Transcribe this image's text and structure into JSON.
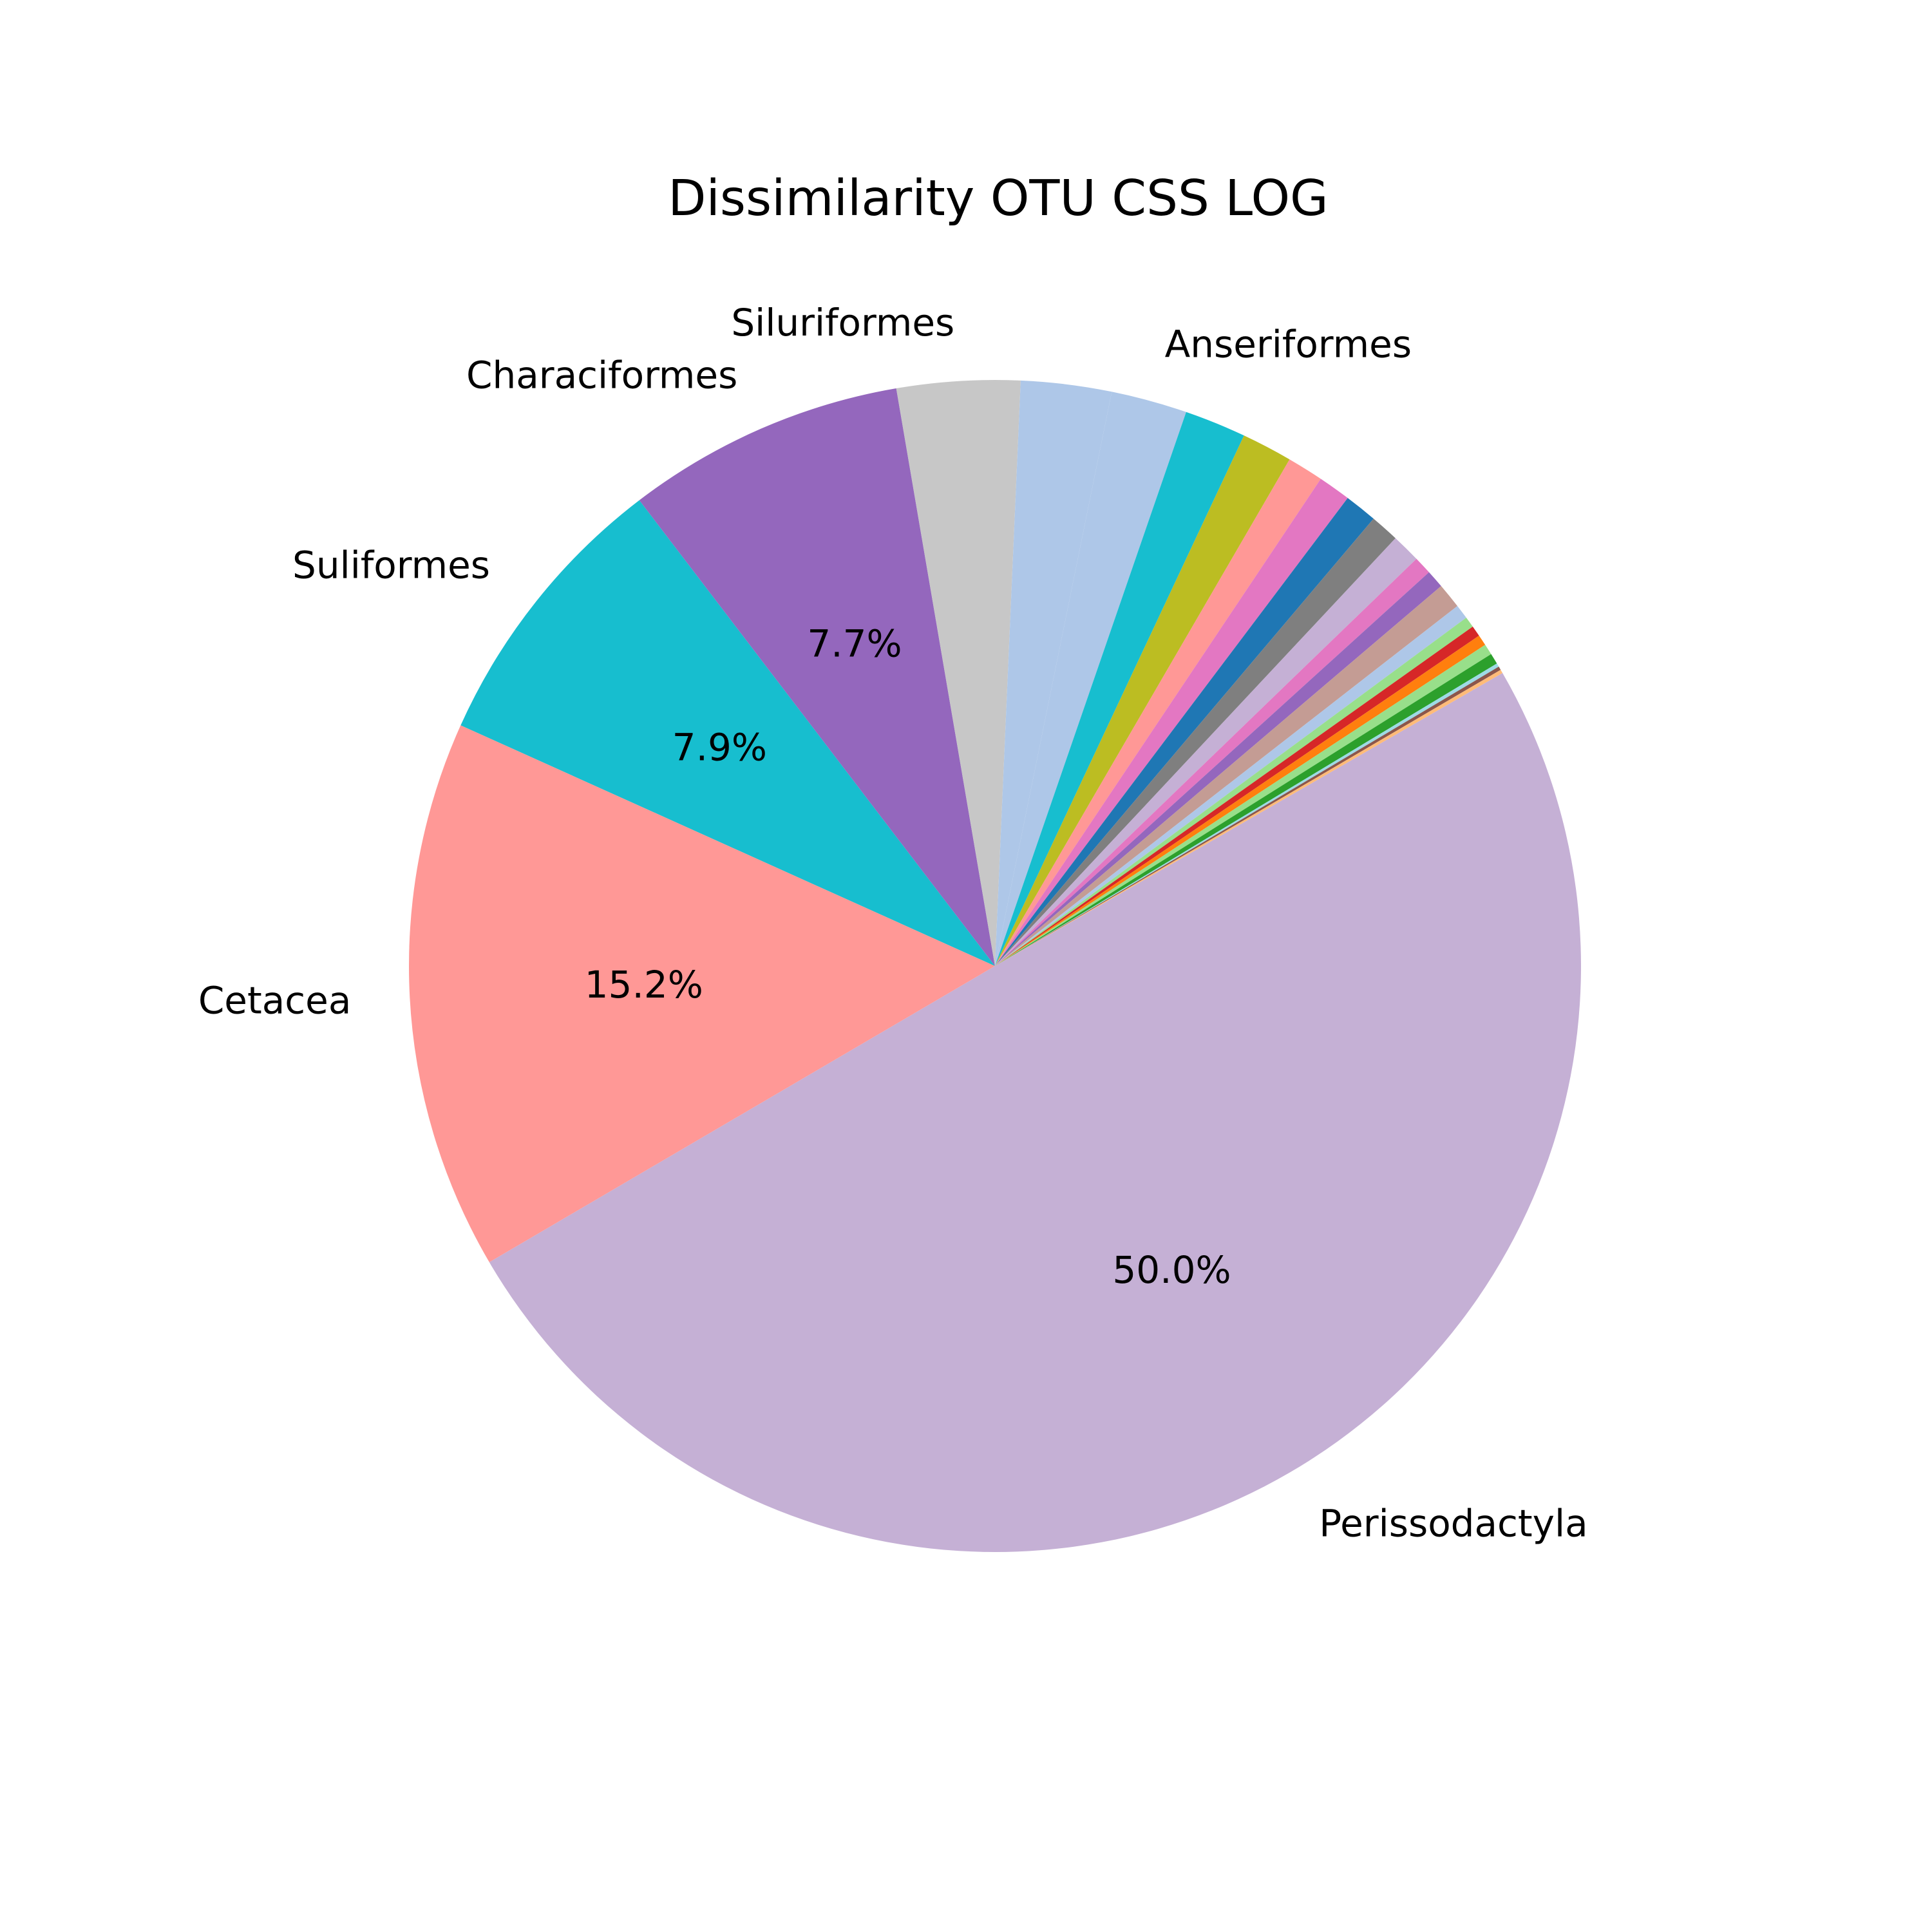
{
  "chart_data": {
    "type": "pie",
    "title": "Dissimilarity OTU CSS LOG",
    "start_angle_deg": -30,
    "direction": "clockwise",
    "slices": [
      {
        "label": "Perissodactyla",
        "value": 50.0,
        "pct_label": "50.0%",
        "color": "#c5b0d5"
      },
      {
        "label": "Cetacea",
        "value": 15.2,
        "pct_label": "15.2%",
        "color": "#ff9896"
      },
      {
        "label": "Suliformes",
        "value": 7.9,
        "pct_label": "7.9%",
        "color": "#17becf"
      },
      {
        "label": "Characiformes",
        "value": 7.7,
        "pct_label": "7.7%",
        "color": "#9467bd"
      },
      {
        "label": "Siluriformes",
        "value": 3.4,
        "pct_label": "",
        "color": "#c7c7c7"
      },
      {
        "label": "",
        "value": 2.5,
        "pct_label": "",
        "color": "#aec7e8"
      },
      {
        "label": "Anseriformes",
        "value": 2.1,
        "pct_label": "",
        "color": "#aec7e8"
      },
      {
        "label": "",
        "value": 1.7,
        "pct_label": "",
        "color": "#17becf"
      },
      {
        "label": "",
        "value": 1.4,
        "pct_label": "",
        "color": "#bcbd22"
      },
      {
        "label": "",
        "value": 1.0,
        "pct_label": "",
        "color": "#ff9896"
      },
      {
        "label": "",
        "value": 0.9,
        "pct_label": "",
        "color": "#e377c2"
      },
      {
        "label": "",
        "value": 0.9,
        "pct_label": "",
        "color": "#1f77b4"
      },
      {
        "label": "",
        "value": 0.8,
        "pct_label": "",
        "color": "#7f7f7f"
      },
      {
        "label": "",
        "value": 0.8,
        "pct_label": "",
        "color": "#c5b0d5"
      },
      {
        "label": "",
        "value": 0.5,
        "pct_label": "",
        "color": "#e377c2"
      },
      {
        "label": "",
        "value": 0.5,
        "pct_label": "",
        "color": "#9467bd"
      },
      {
        "label": "",
        "value": 0.7,
        "pct_label": "",
        "color": "#c49c94"
      },
      {
        "label": "",
        "value": 0.4,
        "pct_label": "",
        "color": "#aec7e8"
      },
      {
        "label": "",
        "value": 0.3,
        "pct_label": "",
        "color": "#98df8a"
      },
      {
        "label": "",
        "value": 0.3,
        "pct_label": "",
        "color": "#d62728"
      },
      {
        "label": "",
        "value": 0.3,
        "pct_label": "",
        "color": "#ff7f0e"
      },
      {
        "label": "",
        "value": 0.3,
        "pct_label": "",
        "color": "#98df8a"
      },
      {
        "label": "",
        "value": 0.3,
        "pct_label": "",
        "color": "#2ca02c"
      },
      {
        "label": "",
        "value": 0.1,
        "pct_label": "",
        "color": "#9edae5"
      },
      {
        "label": "",
        "value": 0.1,
        "pct_label": "",
        "color": "#8c564b"
      },
      {
        "label": "",
        "value": 0.1,
        "pct_label": "",
        "color": "#ffbb78"
      }
    ]
  }
}
